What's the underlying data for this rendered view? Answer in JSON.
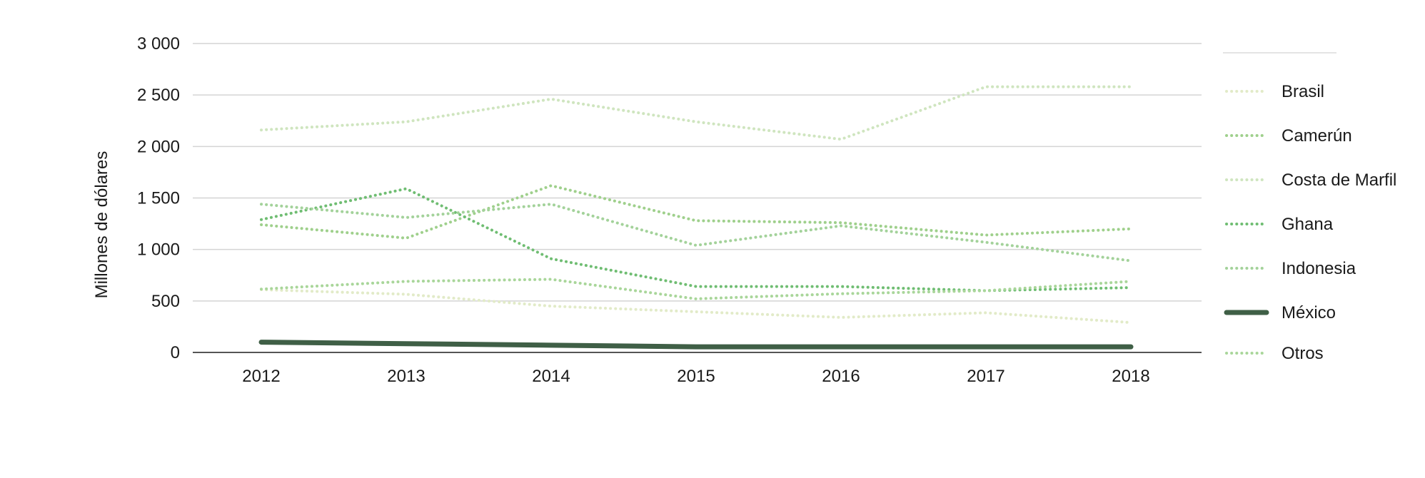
{
  "chart_data": {
    "type": "line",
    "ylabel": "Millones de dólares",
    "xlabel": "",
    "x": [
      "2012",
      "2013",
      "2014",
      "2015",
      "2016",
      "2017",
      "2018"
    ],
    "ylim": [
      0,
      3000
    ],
    "yticks": [
      0,
      500,
      1000,
      1500,
      2000,
      2500,
      3000
    ],
    "ytick_labels": [
      "0",
      "500",
      "1 000",
      "1 500",
      "2 000",
      "2 500",
      "3 000"
    ],
    "grid": true,
    "legend_position": "right",
    "series": [
      {
        "name": "Brasil",
        "color": "#e2ebc8",
        "style": "dotted",
        "values": [
          610,
          565,
          450,
          395,
          340,
          385,
          290
        ]
      },
      {
        "name": "Camerún",
        "color": "#9fd08c",
        "style": "dotted",
        "values": [
          1240,
          1110,
          1620,
          1280,
          1260,
          1140,
          1200
        ]
      },
      {
        "name": "Costa de Marfil",
        "color": "#cfe5bf",
        "style": "dotted",
        "values": [
          2160,
          2240,
          2460,
          2240,
          2070,
          2580,
          2580
        ]
      },
      {
        "name": "Ghana",
        "color": "#6fbd72",
        "style": "dotted",
        "values": [
          1290,
          1590,
          910,
          640,
          640,
          600,
          630
        ]
      },
      {
        "name": "Indonesia",
        "color": "#a3d29a",
        "style": "dotted",
        "values": [
          1440,
          1310,
          1440,
          1040,
          1230,
          1070,
          890
        ]
      },
      {
        "name": "México",
        "color": "#3f5f46",
        "style": "solid",
        "values": [
          100,
          85,
          70,
          55,
          55,
          55,
          55
        ]
      },
      {
        "name": "Otros",
        "color": "#a9d69a",
        "style": "dotted",
        "values": [
          615,
          690,
          710,
          520,
          570,
          600,
          690
        ]
      }
    ]
  }
}
